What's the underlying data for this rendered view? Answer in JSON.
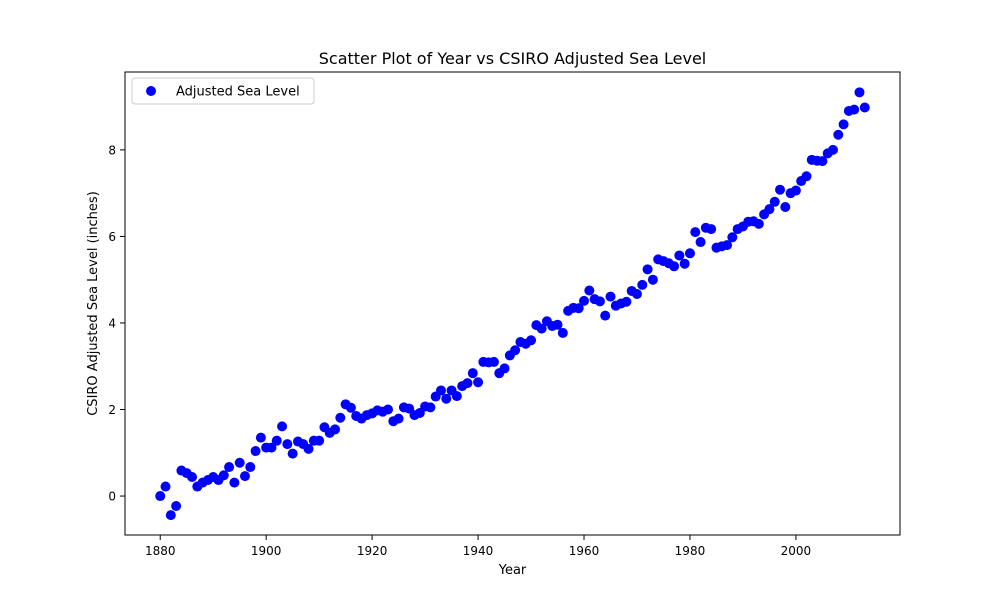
{
  "chart_data": {
    "type": "scatter",
    "title": "Scatter Plot of Year vs CSIRO Adjusted Sea Level",
    "xlabel": "Year",
    "ylabel": "CSIRO Adjusted Sea Level (inches)",
    "xlim": [
      1873.35,
      2019.65
    ],
    "ylim": [
      -0.9,
      9.8
    ],
    "xticks": [
      1880,
      1900,
      1920,
      1940,
      1960,
      1980,
      2000
    ],
    "yticks": [
      0,
      2,
      4,
      6,
      8
    ],
    "xtick_labels": [
      "1880",
      "1900",
      "1920",
      "1940",
      "1960",
      "1980",
      "2000"
    ],
    "ytick_labels": [
      "0",
      "2",
      "4",
      "6",
      "8"
    ],
    "grid": false,
    "legend_position": "top-left",
    "colors": {
      "series": "#0000ff"
    },
    "series": [
      {
        "name": "Adjusted Sea Level",
        "x": [
          1880,
          1881,
          1882,
          1883,
          1884,
          1885,
          1886,
          1887,
          1888,
          1889,
          1890,
          1891,
          1892,
          1893,
          1894,
          1895,
          1896,
          1897,
          1898,
          1899,
          1900,
          1901,
          1902,
          1903,
          1904,
          1905,
          1906,
          1907,
          1908,
          1909,
          1910,
          1911,
          1912,
          1913,
          1914,
          1915,
          1916,
          1917,
          1918,
          1919,
          1920,
          1921,
          1922,
          1923,
          1924,
          1925,
          1926,
          1927,
          1928,
          1929,
          1930,
          1931,
          1932,
          1933,
          1934,
          1935,
          1936,
          1937,
          1938,
          1939,
          1940,
          1941,
          1942,
          1943,
          1944,
          1945,
          1946,
          1947,
          1948,
          1949,
          1950,
          1951,
          1952,
          1953,
          1954,
          1955,
          1956,
          1957,
          1958,
          1959,
          1960,
          1961,
          1962,
          1963,
          1964,
          1965,
          1966,
          1967,
          1968,
          1969,
          1970,
          1971,
          1972,
          1973,
          1974,
          1975,
          1976,
          1977,
          1978,
          1979,
          1980,
          1981,
          1982,
          1983,
          1984,
          1985,
          1986,
          1987,
          1988,
          1989,
          1990,
          1991,
          1992,
          1993,
          1994,
          1995,
          1996,
          1997,
          1998,
          1999,
          2000,
          2001,
          2002,
          2003,
          2004,
          2005,
          2006,
          2007,
          2008,
          2009,
          2010,
          2011,
          2012,
          2013
        ],
        "y": [
          0.0,
          0.22,
          -0.44,
          -0.23,
          0.59,
          0.53,
          0.44,
          0.22,
          0.31,
          0.37,
          0.44,
          0.37,
          0.48,
          0.67,
          0.31,
          0.77,
          0.46,
          0.67,
          1.04,
          1.35,
          1.12,
          1.12,
          1.28,
          1.61,
          1.2,
          0.98,
          1.26,
          1.2,
          1.09,
          1.28,
          1.28,
          1.59,
          1.46,
          1.54,
          1.81,
          2.12,
          2.04,
          1.85,
          1.79,
          1.87,
          1.91,
          1.98,
          1.95,
          2.0,
          1.73,
          1.79,
          2.05,
          2.02,
          1.87,
          1.92,
          2.07,
          2.05,
          2.3,
          2.44,
          2.25,
          2.44,
          2.31,
          2.54,
          2.61,
          2.84,
          2.63,
          3.1,
          3.09,
          3.1,
          2.84,
          2.95,
          3.25,
          3.37,
          3.56,
          3.52,
          3.6,
          3.95,
          3.87,
          4.04,
          3.93,
          3.96,
          3.77,
          4.28,
          4.35,
          4.34,
          4.51,
          4.75,
          4.55,
          4.5,
          4.17,
          4.61,
          4.4,
          4.45,
          4.49,
          4.74,
          4.67,
          4.88,
          5.24,
          5.0,
          5.47,
          5.43,
          5.38,
          5.31,
          5.56,
          5.37,
          5.61,
          6.1,
          5.87,
          6.2,
          6.17,
          5.74,
          5.77,
          5.8,
          5.98,
          6.17,
          6.23,
          6.34,
          6.35,
          6.29,
          6.51,
          6.63,
          6.8,
          7.08,
          6.68,
          7.0,
          7.06,
          7.28,
          7.39,
          7.77,
          7.75,
          7.74,
          7.92,
          8.0,
          8.35,
          8.59,
          8.9,
          8.93,
          9.33,
          8.98
        ]
      }
    ]
  }
}
